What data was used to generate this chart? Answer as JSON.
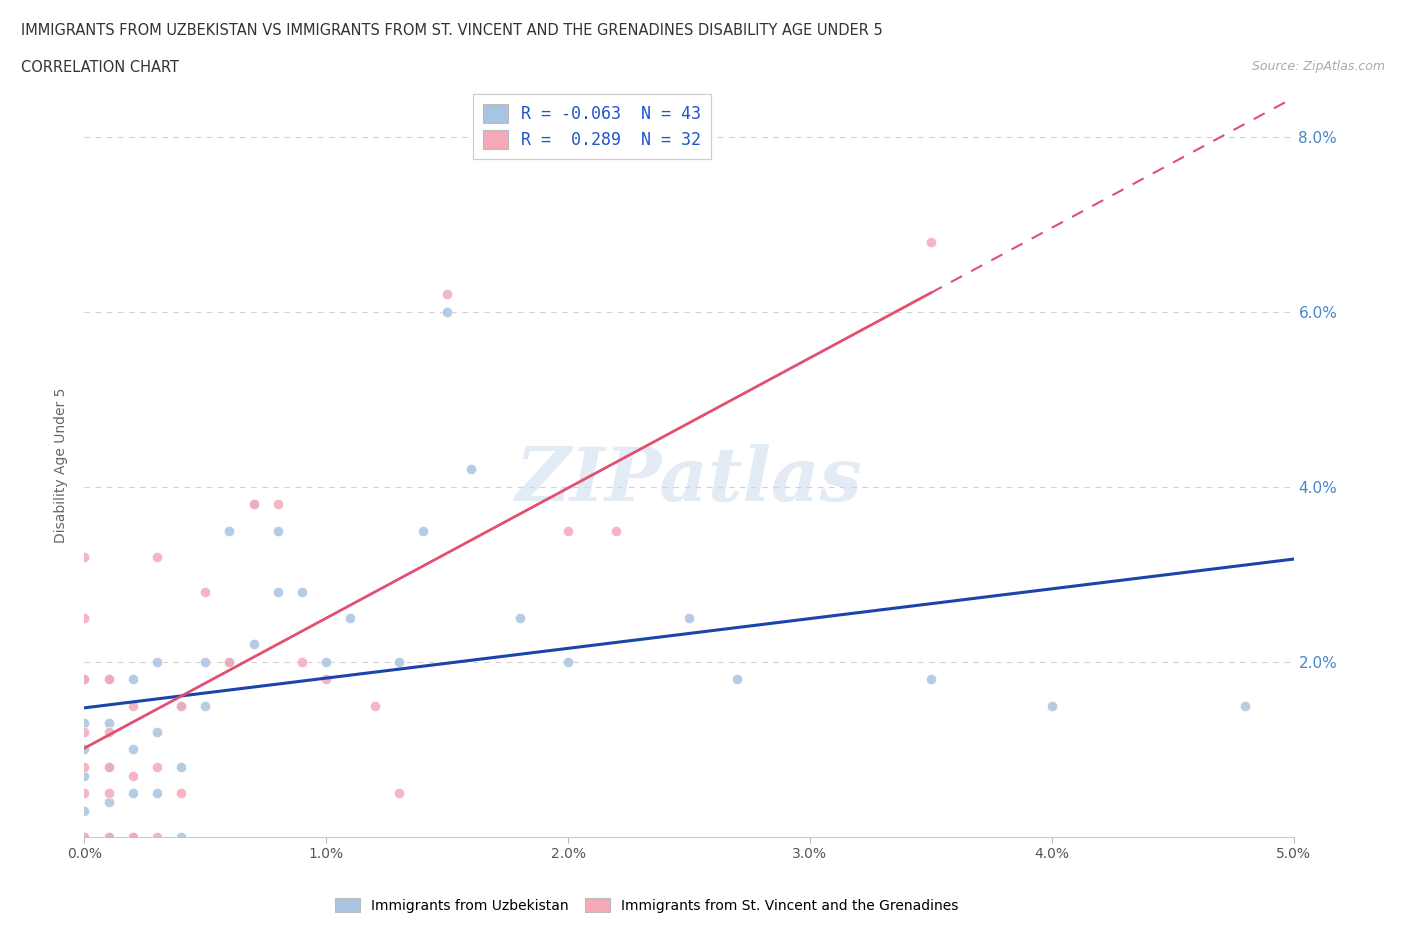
{
  "title_line1": "IMMIGRANTS FROM UZBEKISTAN VS IMMIGRANTS FROM ST. VINCENT AND THE GRENADINES DISABILITY AGE UNDER 5",
  "title_line2": "CORRELATION CHART",
  "source_text": "Source: ZipAtlas.com",
  "ylabel": "Disability Age Under 5",
  "xlim": [
    0.0,
    0.05
  ],
  "ylim": [
    0.0,
    0.085
  ],
  "xtick_labels": [
    "0.0%",
    "1.0%",
    "2.0%",
    "3.0%",
    "4.0%",
    "5.0%"
  ],
  "xtick_vals": [
    0.0,
    0.01,
    0.02,
    0.03,
    0.04,
    0.05
  ],
  "ytick_labels": [
    "8.0%",
    "6.0%",
    "4.0%",
    "2.0%"
  ],
  "ytick_vals": [
    0.08,
    0.06,
    0.04,
    0.02
  ],
  "legend_r1": "R = -0.063  N = 43",
  "legend_r2": "R =  0.289  N = 32",
  "color_uzbekistan": "#a8c4e0",
  "color_svg": "#f4a8b8",
  "trendline_uzbekistan_color": "#1a44aa",
  "trendline_svg_color": "#e05070",
  "watermark": "ZIPatlas",
  "uzbekistan_x": [
    0.0,
    0.0,
    0.0,
    0.0,
    0.0,
    0.0,
    0.001,
    0.001,
    0.001,
    0.001,
    0.001,
    0.002,
    0.002,
    0.002,
    0.002,
    0.003,
    0.003,
    0.003,
    0.004,
    0.004,
    0.004,
    0.005,
    0.005,
    0.006,
    0.006,
    0.007,
    0.007,
    0.008,
    0.008,
    0.009,
    0.01,
    0.011,
    0.013,
    0.014,
    0.015,
    0.016,
    0.018,
    0.02,
    0.025,
    0.027,
    0.035,
    0.04,
    0.048
  ],
  "uzbekistan_y": [
    0.0,
    0.003,
    0.007,
    0.01,
    0.013,
    0.018,
    0.0,
    0.004,
    0.008,
    0.013,
    0.018,
    0.0,
    0.005,
    0.01,
    0.018,
    0.005,
    0.012,
    0.02,
    0.0,
    0.008,
    0.015,
    0.015,
    0.02,
    0.02,
    0.035,
    0.022,
    0.038,
    0.028,
    0.035,
    0.028,
    0.02,
    0.025,
    0.02,
    0.035,
    0.06,
    0.042,
    0.025,
    0.02,
    0.025,
    0.018,
    0.018,
    0.015,
    0.015
  ],
  "svg_x": [
    0.0,
    0.0,
    0.0,
    0.0,
    0.0,
    0.0,
    0.0,
    0.001,
    0.001,
    0.001,
    0.001,
    0.001,
    0.002,
    0.002,
    0.002,
    0.003,
    0.003,
    0.003,
    0.004,
    0.004,
    0.005,
    0.006,
    0.007,
    0.008,
    0.009,
    0.01,
    0.012,
    0.013,
    0.015,
    0.02,
    0.022,
    0.035
  ],
  "svg_y": [
    0.0,
    0.005,
    0.008,
    0.012,
    0.018,
    0.025,
    0.032,
    0.0,
    0.005,
    0.008,
    0.012,
    0.018,
    0.0,
    0.007,
    0.015,
    0.0,
    0.008,
    0.032,
    0.005,
    0.015,
    0.028,
    0.02,
    0.038,
    0.038,
    0.02,
    0.018,
    0.015,
    0.005,
    0.062,
    0.035,
    0.035,
    0.068
  ]
}
